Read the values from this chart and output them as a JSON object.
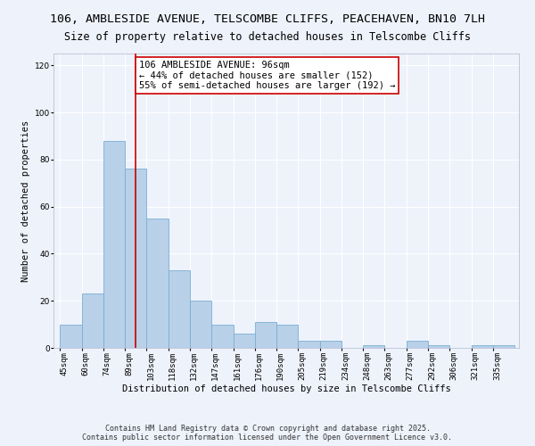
{
  "title_line1": "106, AMBLESIDE AVENUE, TELSCOMBE CLIFFS, PEACEHAVEN, BN10 7LH",
  "title_line2": "Size of property relative to detached houses in Telscombe Cliffs",
  "xlabel": "Distribution of detached houses by size in Telscombe Cliffs",
  "ylabel": "Number of detached properties",
  "categories": [
    "45sqm",
    "60sqm",
    "74sqm",
    "89sqm",
    "103sqm",
    "118sqm",
    "132sqm",
    "147sqm",
    "161sqm",
    "176sqm",
    "190sqm",
    "205sqm",
    "219sqm",
    "234sqm",
    "248sqm",
    "263sqm",
    "277sqm",
    "292sqm",
    "306sqm",
    "321sqm",
    "335sqm"
  ],
  "values": [
    10,
    23,
    88,
    76,
    55,
    33,
    20,
    10,
    6,
    11,
    10,
    3,
    3,
    0,
    1,
    0,
    3,
    1,
    0,
    1,
    1
  ],
  "bar_color": "#b8d0e8",
  "bar_edge_color": "#7aafd4",
  "vline_x_index": 3.5,
  "vline_color": "#cc0000",
  "annotation_text": "106 AMBLESIDE AVENUE: 96sqm\n← 44% of detached houses are smaller (152)\n55% of semi-detached houses are larger (192) →",
  "annotation_box_color": "#ffffff",
  "annotation_box_edge_color": "#cc0000",
  "ylim": [
    0,
    125
  ],
  "yticks": [
    0,
    20,
    40,
    60,
    80,
    100,
    120
  ],
  "footer_line1": "Contains HM Land Registry data © Crown copyright and database right 2025.",
  "footer_line2": "Contains public sector information licensed under the Open Government Licence v3.0.",
  "bg_color": "#eef2fb",
  "grid_color": "#ffffff",
  "title_fontsize": 9.5,
  "subtitle_fontsize": 8.5,
  "axis_label_fontsize": 7.5,
  "tick_fontsize": 6.5,
  "annotation_fontsize": 7.5,
  "footer_fontsize": 6.0
}
